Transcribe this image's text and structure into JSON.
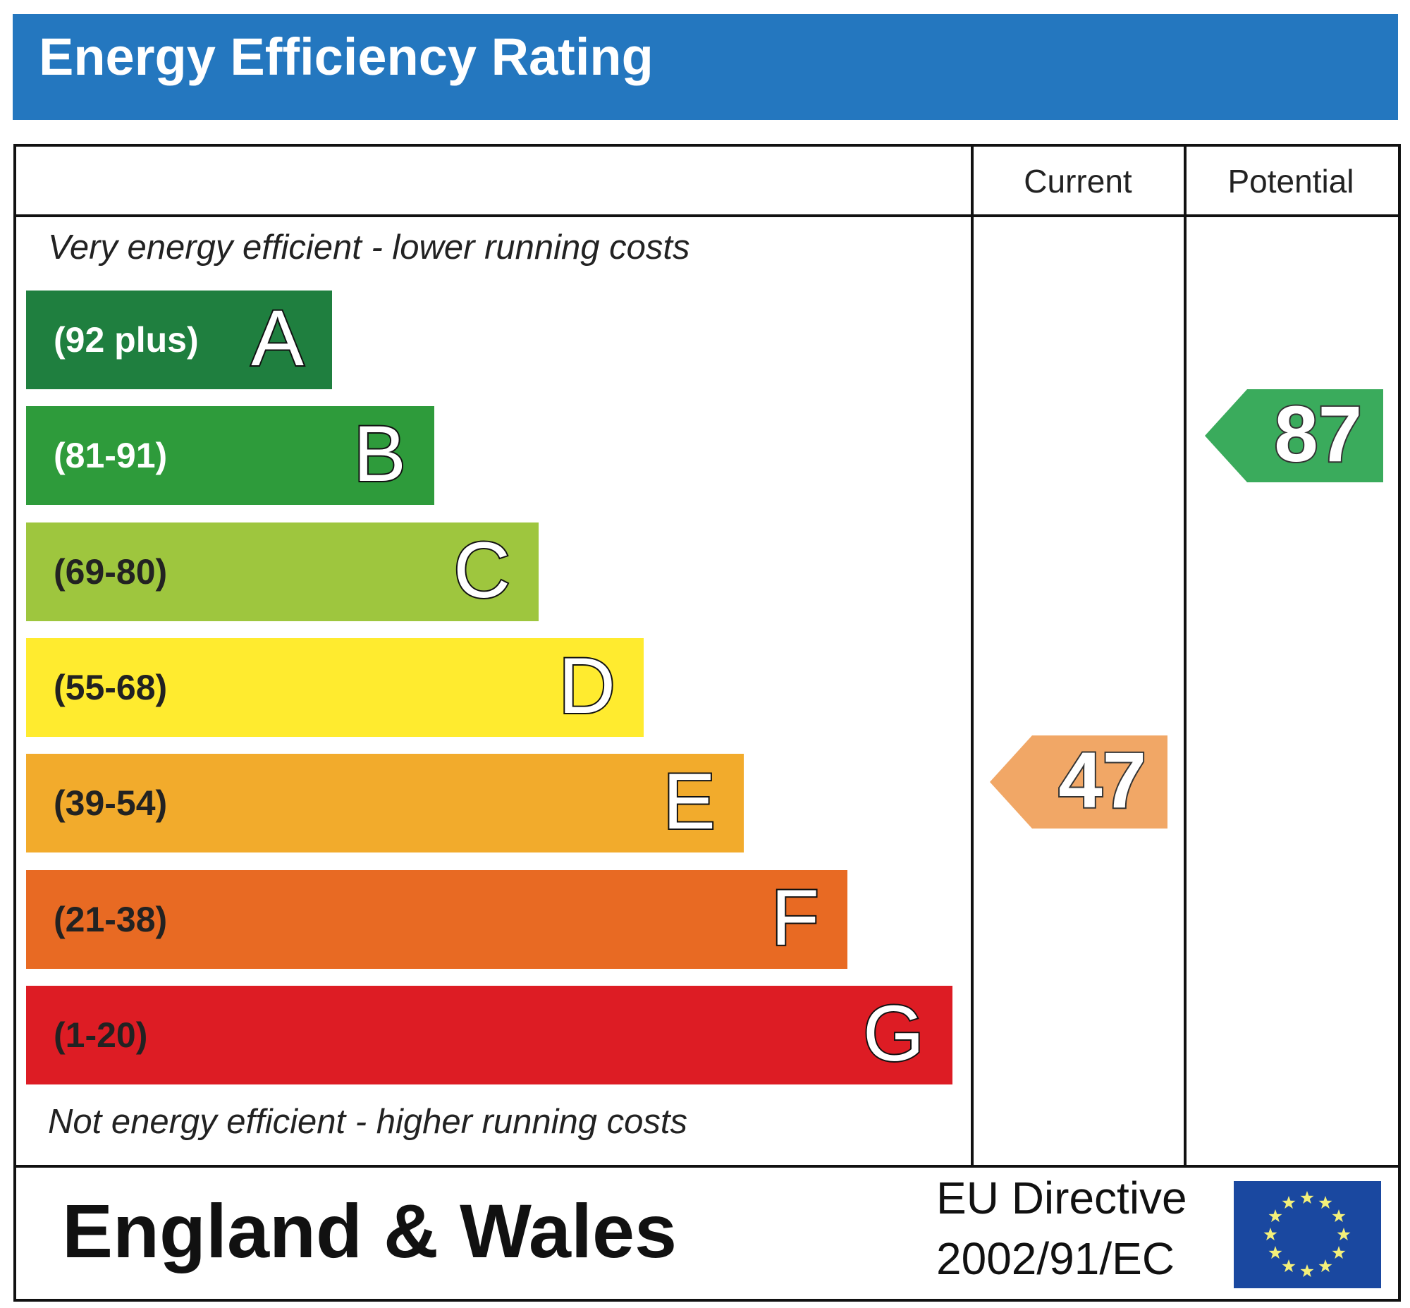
{
  "header": {
    "title": "Energy Efficiency Rating"
  },
  "columns": {
    "current": "Current",
    "potential": "Potential"
  },
  "notes": {
    "top": "Very energy efficient - lower running costs",
    "bottom": "Not energy efficient - higher running costs"
  },
  "chart_data": {
    "type": "bar",
    "title": "Energy Efficiency Rating",
    "categories": [
      "A",
      "B",
      "C",
      "D",
      "E",
      "F",
      "G"
    ],
    "bands": [
      {
        "letter": "A",
        "range": "(92 plus)",
        "color": "#1f7f3f",
        "text_color": "#ffffff"
      },
      {
        "letter": "B",
        "range": "(81-91)",
        "color": "#2e9b3b",
        "text_color": "#ffffff"
      },
      {
        "letter": "C",
        "range": "(69-80)",
        "color": "#9ec63e",
        "text_color": "#222222"
      },
      {
        "letter": "D",
        "range": "(55-68)",
        "color": "#ffeb2f",
        "text_color": "#222222"
      },
      {
        "letter": "E",
        "range": "(39-54)",
        "color": "#f2ab2c",
        "text_color": "#222222"
      },
      {
        "letter": "F",
        "range": "(21-38)",
        "color": "#e86a23",
        "text_color": "#222222"
      },
      {
        "letter": "G",
        "range": "(1-20)",
        "color": "#dd1c24",
        "text_color": "#222222"
      }
    ],
    "current": {
      "value": "47",
      "band": "E",
      "color": "#f1a766"
    },
    "potential": {
      "value": "87",
      "band": "B",
      "color": "#3aab5c"
    }
  },
  "footer": {
    "region": "England & Wales",
    "directive_line1": "EU Directive",
    "directive_line2": "2002/91/EC",
    "flag_icon": "eu-flag-icon"
  },
  "colors": {
    "header_blue": "#2477bf",
    "flag_blue": "#1a48a0",
    "flag_star": "#f4f07a"
  }
}
